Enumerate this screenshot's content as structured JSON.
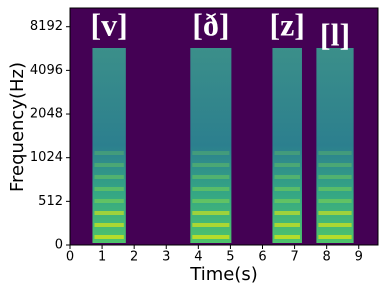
{
  "chart_data": {
    "type": "spectrogram",
    "xlabel": "Time(s)",
    "ylabel": "Frequency(Hz)",
    "xlim": [
      0,
      9.6
    ],
    "ylim": [
      0,
      11025
    ],
    "yscale": "symlog",
    "linthresh": 512,
    "xticks": [
      0,
      1,
      2,
      3,
      4,
      5,
      6,
      7,
      8,
      9
    ],
    "yticks": [
      0,
      512,
      1024,
      2048,
      4096,
      8192
    ],
    "colormap": "viridis",
    "segments": [
      {
        "label": "[v]",
        "start": 0.7,
        "end": 1.74
      },
      {
        "label": "[ð]",
        "start": 3.75,
        "end": 5.03
      },
      {
        "label": "[z]",
        "start": 6.31,
        "end": 7.23
      },
      {
        "label": "[l]",
        "start": 7.68,
        "end": 8.84
      }
    ]
  }
}
